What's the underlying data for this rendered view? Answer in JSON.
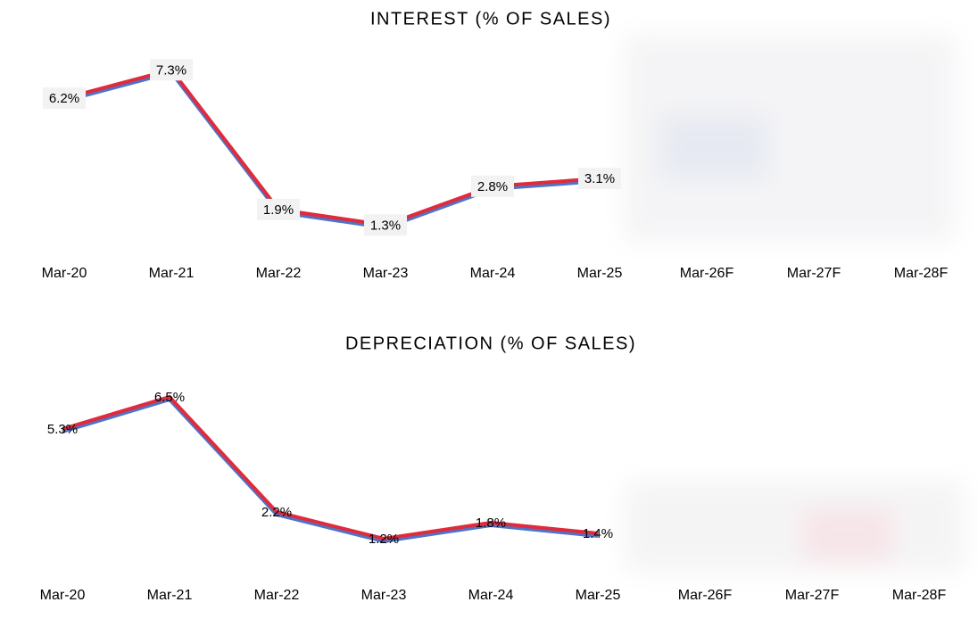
{
  "chart_data": [
    {
      "type": "line",
      "title": "INTEREST (% OF SALES)",
      "categories": [
        "Mar-20",
        "Mar-21",
        "Mar-22",
        "Mar-23",
        "Mar-24",
        "Mar-25",
        "Mar-26F",
        "Mar-27F",
        "Mar-28F"
      ],
      "values": [
        6.2,
        7.3,
        1.9,
        1.3,
        2.8,
        3.1,
        null,
        null,
        null
      ],
      "value_labels": [
        "6.2%",
        "7.3%",
        "1.9%",
        "1.3%",
        "2.8%",
        "3.1%",
        null,
        null,
        null
      ],
      "color": "#e02b3c",
      "shadow_color": "#4f73c6",
      "label_background": "#f2f2f2"
    },
    {
      "type": "line",
      "title": "DEPRECIATION (% OF SALES)",
      "categories": [
        "Mar-20",
        "Mar-21",
        "Mar-22",
        "Mar-23",
        "Mar-24",
        "Mar-25",
        "Mar-26F",
        "Mar-27F",
        "Mar-28F"
      ],
      "values": [
        5.3,
        6.5,
        2.2,
        1.2,
        1.8,
        1.4,
        null,
        null,
        null
      ],
      "value_labels": [
        "5.3%",
        "6.5%",
        "2.2%",
        "1.2%",
        "1.8%",
        "1.4%",
        null,
        null,
        null
      ],
      "color": "#e02b3c",
      "shadow_color": "#4f73c6",
      "label_background": null
    }
  ]
}
